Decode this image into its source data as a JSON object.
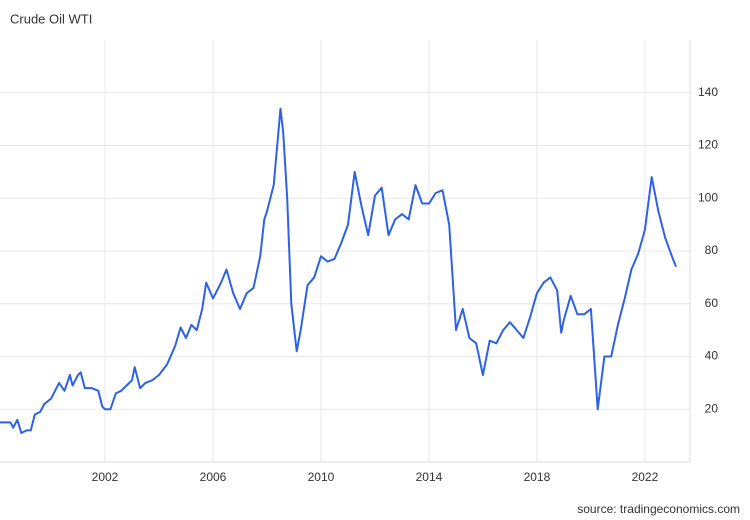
{
  "chart_data": {
    "type": "line",
    "title": "Crude Oil WTI",
    "source": "source: tradingeconomics.com",
    "x": [
      1998.1,
      1998.5,
      1998.6,
      1998.75,
      1998.9,
      1999.1,
      1999.25,
      1999.4,
      1999.6,
      1999.75,
      2000.0,
      2000.3,
      2000.5,
      2000.7,
      2000.8,
      2001.0,
      2001.1,
      2001.25,
      2001.5,
      2001.75,
      2001.9,
      2002.0,
      2002.2,
      2002.4,
      2002.6,
      2002.8,
      2003.0,
      2003.1,
      2003.3,
      2003.5,
      2003.75,
      2004.0,
      2004.3,
      2004.6,
      2004.8,
      2005.0,
      2005.2,
      2005.4,
      2005.6,
      2005.75,
      2006.0,
      2006.3,
      2006.5,
      2006.75,
      2007.0,
      2007.25,
      2007.5,
      2007.75,
      2007.9,
      2008.0,
      2008.25,
      2008.5,
      2008.6,
      2008.75,
      2008.9,
      2009.1,
      2009.25,
      2009.5,
      2009.75,
      2010.0,
      2010.25,
      2010.5,
      2010.75,
      2011.0,
      2011.25,
      2011.5,
      2011.75,
      2012.0,
      2012.25,
      2012.5,
      2012.75,
      2013.0,
      2013.25,
      2013.5,
      2013.75,
      2014.0,
      2014.25,
      2014.5,
      2014.75,
      2015.0,
      2015.25,
      2015.5,
      2015.75,
      2016.0,
      2016.25,
      2016.5,
      2016.75,
      2017.0,
      2017.25,
      2017.5,
      2017.75,
      2018.0,
      2018.25,
      2018.5,
      2018.75,
      2018.9,
      2019.0,
      2019.25,
      2019.5,
      2019.75,
      2020.0,
      2020.25,
      2020.5,
      2020.75,
      2021.0,
      2021.25,
      2021.5,
      2021.75,
      2022.0,
      2022.25,
      2022.5,
      2022.75,
      2023.0,
      2023.15
    ],
    "series": [
      {
        "name": "Crude Oil WTI",
        "color": "#2d62e6",
        "values": [
          15,
          15,
          13,
          16,
          11,
          12,
          12,
          18,
          19,
          22,
          24,
          30,
          27,
          33,
          29,
          33,
          34,
          28,
          28,
          27,
          21,
          20,
          20,
          26,
          27,
          29,
          31,
          36,
          28,
          30,
          31,
          33,
          37,
          44,
          51,
          47,
          52,
          50,
          58,
          68,
          62,
          68,
          73,
          64,
          58,
          64,
          66,
          78,
          92,
          95,
          105,
          134,
          125,
          100,
          60,
          42,
          50,
          67,
          70,
          78,
          76,
          77,
          83,
          90,
          110,
          97,
          86,
          101,
          104,
          86,
          92,
          94,
          92,
          105,
          98,
          98,
          102,
          103,
          90,
          50,
          58,
          47,
          45,
          33,
          46,
          45,
          50,
          53,
          50,
          47,
          55,
          64,
          68,
          70,
          65,
          49,
          54,
          63,
          56,
          56,
          58,
          20,
          40,
          40,
          52,
          62,
          73,
          79,
          88,
          108,
          95,
          85,
          78,
          74
        ]
      }
    ],
    "xlim": [
      1998.11,
      2023.67
    ],
    "ylim": [
      0,
      160
    ],
    "xticks": [
      2002,
      2006,
      2010,
      2014,
      2018,
      2022
    ],
    "yticks": [
      20,
      40,
      60,
      80,
      100,
      120,
      140
    ],
    "grid": true
  }
}
